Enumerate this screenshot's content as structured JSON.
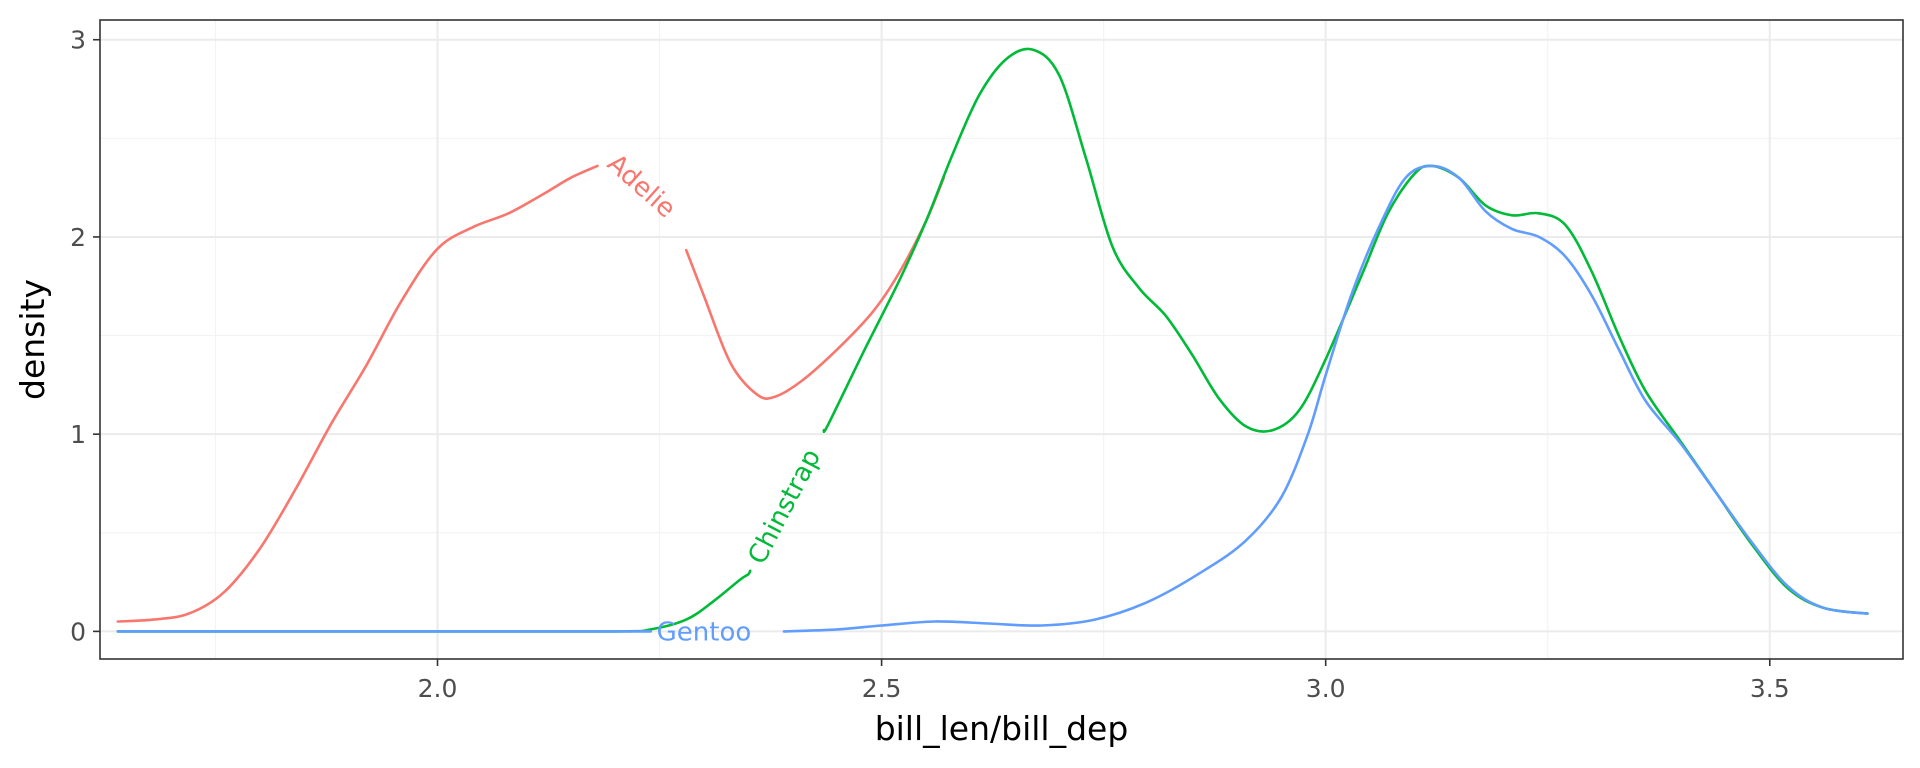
{
  "chart_data": {
    "type": "line",
    "xlabel": "bill_len/bill_dep",
    "ylabel": "density",
    "xlim": [
      1.62,
      3.65
    ],
    "ylim": [
      -0.14,
      3.1
    ],
    "x_ticks": [
      2.0,
      2.5,
      3.0,
      3.5
    ],
    "x_tick_labels": [
      "2.0",
      "2.5",
      "3.0",
      "3.5"
    ],
    "y_ticks": [
      0,
      1,
      2,
      3
    ],
    "y_tick_labels": [
      "0",
      "1",
      "2",
      "3"
    ],
    "grid": true,
    "legend": "none (direct labels on curves)",
    "series": [
      {
        "name": "Adelie",
        "color": "#F8766D",
        "label_at_x": 2.23,
        "label_gap": [
          2.18,
          2.28
        ],
        "points": [
          [
            1.64,
            0.05
          ],
          [
            1.68,
            0.06
          ],
          [
            1.72,
            0.09
          ],
          [
            1.76,
            0.2
          ],
          [
            1.8,
            0.42
          ],
          [
            1.84,
            0.72
          ],
          [
            1.88,
            1.05
          ],
          [
            1.92,
            1.35
          ],
          [
            1.96,
            1.68
          ],
          [
            2.0,
            1.94
          ],
          [
            2.04,
            2.05
          ],
          [
            2.08,
            2.12
          ],
          [
            2.12,
            2.22
          ],
          [
            2.15,
            2.3
          ],
          [
            2.18,
            2.36
          ],
          [
            2.2,
            2.38
          ],
          [
            2.24,
            2.22
          ],
          [
            2.27,
            2.05
          ],
          [
            2.3,
            1.7
          ],
          [
            2.33,
            1.36
          ],
          [
            2.36,
            1.2
          ],
          [
            2.38,
            1.19
          ],
          [
            2.41,
            1.27
          ],
          [
            2.45,
            1.43
          ],
          [
            2.49,
            1.62
          ],
          [
            2.52,
            1.82
          ],
          [
            2.55,
            2.08
          ],
          [
            2.57,
            2.3
          ]
        ]
      },
      {
        "name": "Chinstrap",
        "color": "#00BA38",
        "label_at_x": 2.39,
        "label_gap": [
          2.352,
          2.435
        ],
        "points": [
          [
            1.64,
            0.0
          ],
          [
            2.0,
            0.0
          ],
          [
            2.2,
            0.0
          ],
          [
            2.24,
            0.01
          ],
          [
            2.28,
            0.06
          ],
          [
            2.31,
            0.15
          ],
          [
            2.34,
            0.26
          ],
          [
            2.35,
            0.29
          ],
          [
            2.4,
            0.72
          ],
          [
            2.42,
            0.93
          ],
          [
            2.44,
            1.05
          ],
          [
            2.48,
            1.42
          ],
          [
            2.52,
            1.78
          ],
          [
            2.55,
            2.08
          ],
          [
            2.58,
            2.42
          ],
          [
            2.61,
            2.72
          ],
          [
            2.64,
            2.9
          ],
          [
            2.67,
            2.95
          ],
          [
            2.7,
            2.82
          ],
          [
            2.73,
            2.4
          ],
          [
            2.76,
            1.95
          ],
          [
            2.79,
            1.74
          ],
          [
            2.82,
            1.6
          ],
          [
            2.85,
            1.4
          ],
          [
            2.88,
            1.18
          ],
          [
            2.91,
            1.04
          ],
          [
            2.94,
            1.02
          ],
          [
            2.97,
            1.12
          ],
          [
            3.0,
            1.38
          ],
          [
            3.04,
            1.8
          ],
          [
            3.07,
            2.12
          ],
          [
            3.1,
            2.32
          ],
          [
            3.12,
            2.36
          ],
          [
            3.15,
            2.3
          ],
          [
            3.18,
            2.16
          ],
          [
            3.21,
            2.11
          ],
          [
            3.24,
            2.12
          ],
          [
            3.27,
            2.06
          ],
          [
            3.3,
            1.82
          ],
          [
            3.33,
            1.5
          ],
          [
            3.36,
            1.22
          ],
          [
            3.4,
            0.96
          ],
          [
            3.44,
            0.7
          ],
          [
            3.48,
            0.44
          ],
          [
            3.52,
            0.22
          ],
          [
            3.56,
            0.12
          ],
          [
            3.61,
            0.09
          ]
        ]
      },
      {
        "name": "Gentoo",
        "color": "#619CFF",
        "label_at_x": 2.3,
        "label_gap": [
          2.24,
          2.39
        ],
        "points": [
          [
            1.64,
            0.0
          ],
          [
            2.0,
            0.0
          ],
          [
            2.2,
            0.0
          ],
          [
            2.24,
            0.0
          ],
          [
            2.39,
            0.0
          ],
          [
            2.45,
            0.01
          ],
          [
            2.5,
            0.03
          ],
          [
            2.56,
            0.05
          ],
          [
            2.62,
            0.04
          ],
          [
            2.68,
            0.03
          ],
          [
            2.74,
            0.06
          ],
          [
            2.8,
            0.15
          ],
          [
            2.86,
            0.3
          ],
          [
            2.91,
            0.46
          ],
          [
            2.95,
            0.68
          ],
          [
            2.98,
            1.0
          ],
          [
            3.0,
            1.3
          ],
          [
            3.03,
            1.72
          ],
          [
            3.06,
            2.05
          ],
          [
            3.09,
            2.3
          ],
          [
            3.12,
            2.36
          ],
          [
            3.15,
            2.3
          ],
          [
            3.18,
            2.13
          ],
          [
            3.21,
            2.04
          ],
          [
            3.24,
            2.0
          ],
          [
            3.27,
            1.9
          ],
          [
            3.3,
            1.7
          ],
          [
            3.33,
            1.43
          ],
          [
            3.36,
            1.17
          ],
          [
            3.4,
            0.95
          ],
          [
            3.44,
            0.7
          ],
          [
            3.48,
            0.45
          ],
          [
            3.52,
            0.23
          ],
          [
            3.56,
            0.12
          ],
          [
            3.61,
            0.09
          ]
        ]
      }
    ]
  }
}
